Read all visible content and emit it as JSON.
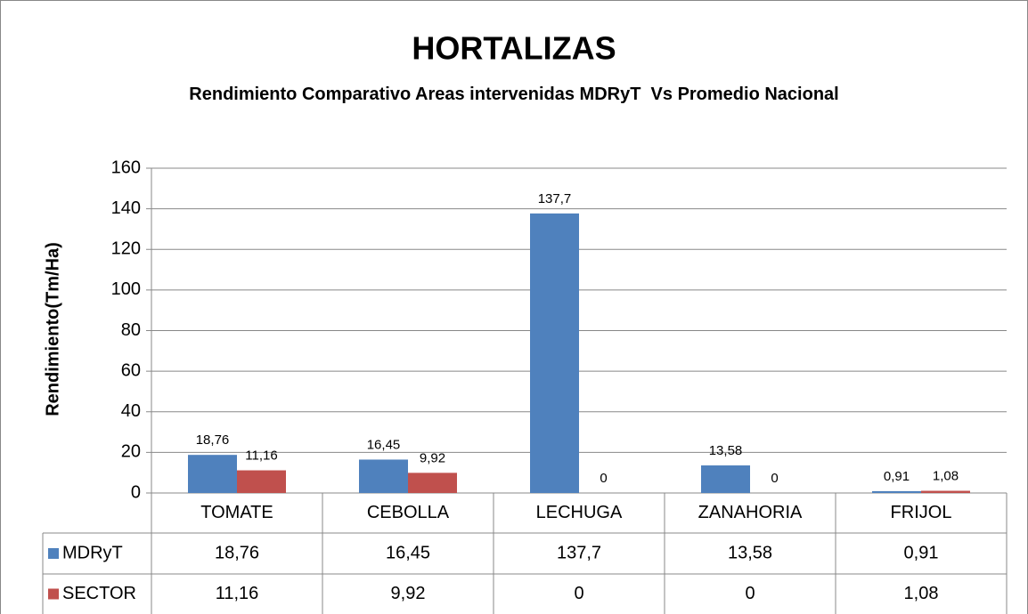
{
  "chart_data": {
    "type": "bar",
    "title": "HORTALIZAS",
    "subtitle": "Rendimiento Comparativo Areas intervenidas MDRyT  Vs Promedio Nacional",
    "y_label": "Rendimiento(Tm/Ha)",
    "categories": [
      "TOMATE",
      "CEBOLLA",
      "LECHUGA",
      "ZANAHORIA",
      "FRIJOL"
    ],
    "series": [
      {
        "name": "MDRyT",
        "color": "#4f81bd",
        "values": [
          18.76,
          16.45,
          137.7,
          13.58,
          0.91
        ],
        "value_labels": [
          "18,76",
          "16,45",
          "137,7",
          "13,58",
          "0,91"
        ]
      },
      {
        "name": "SECTOR",
        "color": "#c0504d",
        "values": [
          11.16,
          9.92,
          0,
          0,
          1.08
        ],
        "value_labels": [
          "11,16",
          "9,92",
          "0",
          "0",
          "1,08"
        ]
      }
    ],
    "ylim": [
      0,
      160
    ],
    "yticks": [
      0,
      20,
      40,
      60,
      80,
      100,
      120,
      140,
      160
    ],
    "grid": true,
    "data_table": true
  }
}
